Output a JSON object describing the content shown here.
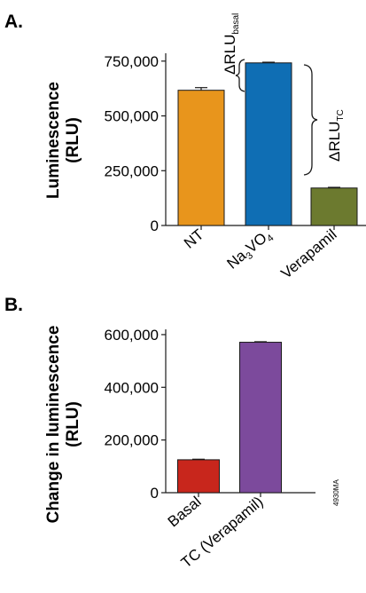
{
  "panel_a_label": "A.",
  "panel_b_label": "B.",
  "figure_code": "4930MA",
  "annotations": {
    "basal_main": "ΔRLU",
    "basal_sub": "basal",
    "tc_main": "ΔRLU",
    "tc_sub": "TC"
  },
  "chart_data": [
    {
      "type": "bar",
      "panel": "A.",
      "ylabel_lines": [
        "Luminescence",
        "(RLU)"
      ],
      "categories": [
        "NT",
        "Na3VO4",
        "Verapamil"
      ],
      "category_labels": [
        {
          "main": "NT"
        },
        {
          "main": "Na",
          "sub1": "3",
          "mid": "VO",
          "sub2": "4"
        },
        {
          "main": "Verapamil"
        }
      ],
      "values": [
        617000,
        742000,
        171000
      ],
      "errors": [
        12000,
        3000,
        3000
      ],
      "colors": [
        "#e8951c",
        "#0f6eb4",
        "#6c7a2f"
      ],
      "ylim": [
        0,
        800000
      ],
      "yticks": [
        0,
        250000,
        500000,
        750000
      ],
      "ytick_labels": [
        "0",
        "250,000",
        "500,000",
        "750,000"
      ]
    },
    {
      "type": "bar",
      "panel": "B.",
      "ylabel_lines": [
        "Change in luminescence",
        "(RLU)"
      ],
      "categories": [
        "Basal",
        "TC (Verapamil)"
      ],
      "values": [
        125000,
        571000
      ],
      "errors": [
        2000,
        2000
      ],
      "colors": [
        "#c8261c",
        "#7c4a9c"
      ],
      "ylim": [
        0,
        620000
      ],
      "yticks": [
        0,
        200000,
        400000,
        600000
      ],
      "ytick_labels": [
        "0",
        "200,000",
        "400,000",
        "600,000"
      ]
    }
  ]
}
